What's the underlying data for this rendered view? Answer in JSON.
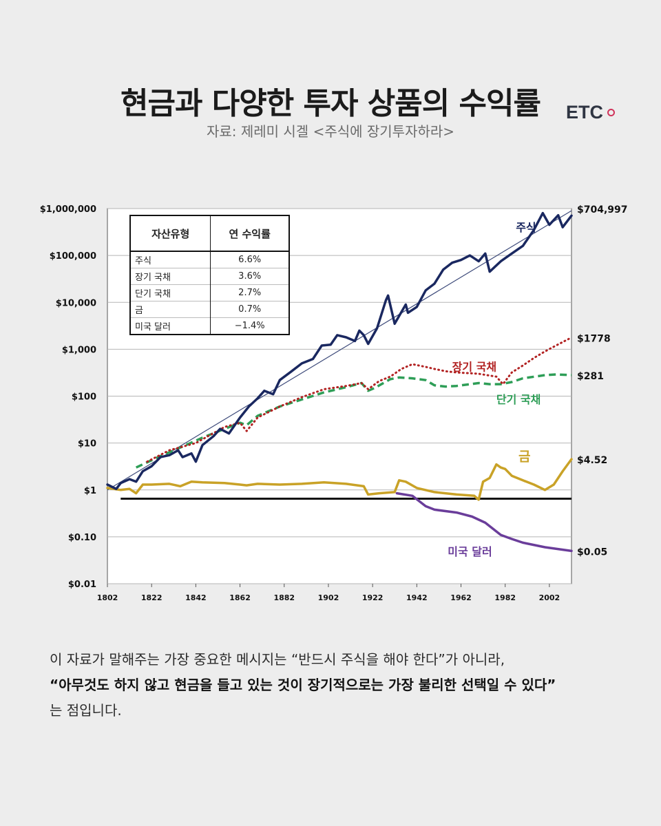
{
  "header": {
    "title": "현금과 다양한 투자 상품의 수익률",
    "source": "자료: 제레미 시겔 <주식에 장기투자하라>",
    "brand": "ETC"
  },
  "returns_table": {
    "headers": [
      "자산유형",
      "연 수익률"
    ],
    "rows": [
      {
        "asset": "주식",
        "rate": "6.6%"
      },
      {
        "asset": "장기 국채",
        "rate": "3.6%"
      },
      {
        "asset": "단기 국채",
        "rate": "2.7%"
      },
      {
        "asset": "금",
        "rate": "0.7%"
      },
      {
        "asset": "미국 달러",
        "rate": "−1.4%"
      }
    ]
  },
  "caption": {
    "line1": "이 자료가 말해주는 가장 중요한 메시지는 “반드시 주식을 해야 한다”가 아니라,",
    "line2": "“아무것도 하지 않고 현금을 들고 있는 것이 장기적으로는 가장 불리한 선택일 수 있다”",
    "line3": "는 점입니다."
  },
  "chart_data": {
    "type": "line",
    "yscale": "log",
    "ylim": [
      0.01,
      1000000
    ],
    "xlim": [
      1802,
      2012
    ],
    "x_ticks": [
      1802,
      1822,
      1842,
      1862,
      1882,
      1902,
      1922,
      1942,
      1962,
      1982,
      2002
    ],
    "y_ticks": [
      {
        "value": 1000000,
        "label": "$1,000,000"
      },
      {
        "value": 100000,
        "label": "$100,000"
      },
      {
        "value": 10000,
        "label": "$10,000"
      },
      {
        "value": 1000,
        "label": "$1,000"
      },
      {
        "value": 100,
        "label": "$100"
      },
      {
        "value": 10,
        "label": "$10"
      },
      {
        "value": 1,
        "label": "$1"
      },
      {
        "value": 0.1,
        "label": "$0.10"
      },
      {
        "value": 0.01,
        "label": "$0.01"
      }
    ],
    "colors": {
      "stocks": "#1a2860",
      "bonds": "#b22222",
      "bills": "#2e9e57",
      "gold": "#c9a227",
      "dollar": "#6a3d9a",
      "trend": "#3d4a7a",
      "baseline": "#111111"
    },
    "baseline": {
      "value": 0.65,
      "from": 1808,
      "to": 2012
    },
    "trend": {
      "from": [
        1802,
        1.0
      ],
      "to": [
        2012,
        900000
      ]
    },
    "series": [
      {
        "key": "stocks",
        "name": "주식",
        "end_label": "$704,997",
        "style": "solid",
        "points": [
          [
            1802,
            1.3
          ],
          [
            1806,
            1.05
          ],
          [
            1808,
            1.4
          ],
          [
            1812,
            1.7
          ],
          [
            1815,
            1.5
          ],
          [
            1818,
            2.5
          ],
          [
            1822,
            3.2
          ],
          [
            1826,
            5
          ],
          [
            1830,
            5.5
          ],
          [
            1834,
            7
          ],
          [
            1836,
            5
          ],
          [
            1840,
            6
          ],
          [
            1842,
            4
          ],
          [
            1845,
            9
          ],
          [
            1850,
            14
          ],
          [
            1853,
            20
          ],
          [
            1857,
            16
          ],
          [
            1862,
            35
          ],
          [
            1866,
            60
          ],
          [
            1870,
            90
          ],
          [
            1873,
            130
          ],
          [
            1877,
            110
          ],
          [
            1880,
            220
          ],
          [
            1885,
            330
          ],
          [
            1890,
            500
          ],
          [
            1895,
            620
          ],
          [
            1899,
            1200
          ],
          [
            1903,
            1250
          ],
          [
            1906,
            2000
          ],
          [
            1910,
            1800
          ],
          [
            1914,
            1500
          ],
          [
            1916,
            2500
          ],
          [
            1918,
            2000
          ],
          [
            1920,
            1300
          ],
          [
            1924,
            2800
          ],
          [
            1928,
            11000
          ],
          [
            1929,
            14000
          ],
          [
            1932,
            3500
          ],
          [
            1937,
            9000
          ],
          [
            1938,
            6000
          ],
          [
            1942,
            8000
          ],
          [
            1946,
            18000
          ],
          [
            1950,
            25000
          ],
          [
            1954,
            50000
          ],
          [
            1958,
            70000
          ],
          [
            1962,
            80000
          ],
          [
            1966,
            100000
          ],
          [
            1970,
            75000
          ],
          [
            1973,
            110000
          ],
          [
            1975,
            45000
          ],
          [
            1980,
            75000
          ],
          [
            1985,
            110000
          ],
          [
            1990,
            160000
          ],
          [
            1995,
            350000
          ],
          [
            1999,
            800000
          ],
          [
            2002,
            450000
          ],
          [
            2006,
            720000
          ],
          [
            2008,
            400000
          ],
          [
            2012,
            704997
          ]
        ]
      },
      {
        "key": "bonds",
        "name": "장기 국채",
        "end_label": "$1778",
        "style": "dotted",
        "points": [
          [
            1820,
            4
          ],
          [
            1830,
            7
          ],
          [
            1842,
            10
          ],
          [
            1855,
            22
          ],
          [
            1862,
            27
          ],
          [
            1865,
            18
          ],
          [
            1870,
            35
          ],
          [
            1880,
            60
          ],
          [
            1890,
            95
          ],
          [
            1900,
            140
          ],
          [
            1910,
            165
          ],
          [
            1917,
            190
          ],
          [
            1920,
            140
          ],
          [
            1925,
            210
          ],
          [
            1930,
            260
          ],
          [
            1935,
            380
          ],
          [
            1940,
            480
          ],
          [
            1946,
            420
          ],
          [
            1950,
            380
          ],
          [
            1955,
            340
          ],
          [
            1960,
            320
          ],
          [
            1970,
            300
          ],
          [
            1978,
            260
          ],
          [
            1981,
            180
          ],
          [
            1985,
            320
          ],
          [
            1990,
            450
          ],
          [
            1995,
            650
          ],
          [
            2000,
            900
          ],
          [
            2005,
            1200
          ],
          [
            2012,
            1778
          ]
        ]
      },
      {
        "key": "bills",
        "name": "단기 국채",
        "end_label": "$281",
        "style": "dashed",
        "points": [
          [
            1815,
            3
          ],
          [
            1825,
            5
          ],
          [
            1835,
            8
          ],
          [
            1845,
            13
          ],
          [
            1855,
            20
          ],
          [
            1862,
            27
          ],
          [
            1865,
            24
          ],
          [
            1870,
            38
          ],
          [
            1880,
            60
          ],
          [
            1890,
            85
          ],
          [
            1900,
            120
          ],
          [
            1910,
            155
          ],
          [
            1917,
            190
          ],
          [
            1920,
            130
          ],
          [
            1923,
            150
          ],
          [
            1930,
            230
          ],
          [
            1934,
            250
          ],
          [
            1940,
            240
          ],
          [
            1946,
            220
          ],
          [
            1950,
            170
          ],
          [
            1955,
            160
          ],
          [
            1960,
            165
          ],
          [
            1970,
            190
          ],
          [
            1975,
            180
          ],
          [
            1980,
            180
          ],
          [
            1985,
            200
          ],
          [
            1990,
            240
          ],
          [
            2000,
            280
          ],
          [
            2005,
            290
          ],
          [
            2012,
            281
          ]
        ]
      },
      {
        "key": "gold",
        "name": "금",
        "end_label": "$4.52",
        "style": "solid",
        "points": [
          [
            1802,
            1.1
          ],
          [
            1808,
            1.0
          ],
          [
            1812,
            1.05
          ],
          [
            1815,
            0.85
          ],
          [
            1818,
            1.3
          ],
          [
            1822,
            1.3
          ],
          [
            1830,
            1.35
          ],
          [
            1835,
            1.2
          ],
          [
            1840,
            1.5
          ],
          [
            1845,
            1.45
          ],
          [
            1855,
            1.4
          ],
          [
            1862,
            1.3
          ],
          [
            1865,
            1.25
          ],
          [
            1870,
            1.35
          ],
          [
            1880,
            1.3
          ],
          [
            1890,
            1.35
          ],
          [
            1900,
            1.45
          ],
          [
            1910,
            1.35
          ],
          [
            1918,
            1.2
          ],
          [
            1920,
            0.8
          ],
          [
            1925,
            0.85
          ],
          [
            1932,
            0.9
          ],
          [
            1934,
            1.6
          ],
          [
            1937,
            1.5
          ],
          [
            1942,
            1.1
          ],
          [
            1950,
            0.9
          ],
          [
            1960,
            0.8
          ],
          [
            1968,
            0.75
          ],
          [
            1970,
            0.62
          ],
          [
            1972,
            1.5
          ],
          [
            1975,
            1.8
          ],
          [
            1978,
            3.5
          ],
          [
            1980,
            3.0
          ],
          [
            1982,
            2.8
          ],
          [
            1985,
            2.0
          ],
          [
            1990,
            1.6
          ],
          [
            1995,
            1.3
          ],
          [
            2000,
            1.0
          ],
          [
            2004,
            1.3
          ],
          [
            2008,
            2.5
          ],
          [
            2012,
            4.52
          ]
        ]
      },
      {
        "key": "dollar",
        "name": "미국 달러",
        "end_label": "$0.05",
        "style": "solid",
        "points": [
          [
            1933,
            0.85
          ],
          [
            1940,
            0.75
          ],
          [
            1946,
            0.45
          ],
          [
            1950,
            0.38
          ],
          [
            1960,
            0.33
          ],
          [
            1967,
            0.27
          ],
          [
            1973,
            0.2
          ],
          [
            1980,
            0.11
          ],
          [
            1985,
            0.09
          ],
          [
            1990,
            0.075
          ],
          [
            2000,
            0.06
          ],
          [
            2012,
            0.05
          ]
        ]
      }
    ]
  }
}
